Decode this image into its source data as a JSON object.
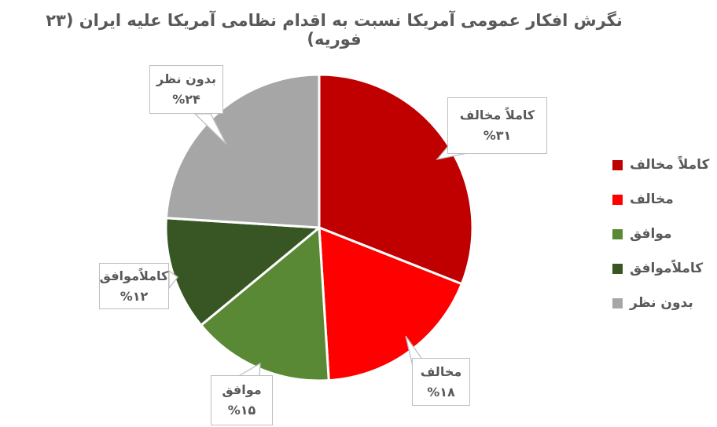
{
  "chart_data": {
    "type": "pie",
    "title": "نگرش افکار عمومی آمریکا نسبت به اقدام نظامی آمریکا علیه ایران (۲۳ فوریه)",
    "title_color": "#595959",
    "label_text_color": "#595959",
    "callout_border_color": "#bfbfbf",
    "slice_separator_color": "#ffffff",
    "background_color": "#ffffff",
    "start_angle_deg": 0,
    "direction": "clockwise",
    "legend_position": "right",
    "slices": [
      {
        "label": "کاملاً مخالف",
        "value": 31,
        "percent_label": "%۳۱",
        "color": "#c00000"
      },
      {
        "label": "مخالف",
        "value": 18,
        "percent_label": "%۱۸",
        "color": "#ff0000"
      },
      {
        "label": "موافق",
        "value": 15,
        "percent_label": "%۱۵",
        "color": "#5a8936"
      },
      {
        "label": "کاملاًموافق",
        "value": 12,
        "percent_label": "%۱۲",
        "color": "#375623"
      },
      {
        "label": "بدون نظر",
        "value": 24,
        "percent_label": "%۲۴",
        "color": "#a6a6a6"
      }
    ]
  }
}
